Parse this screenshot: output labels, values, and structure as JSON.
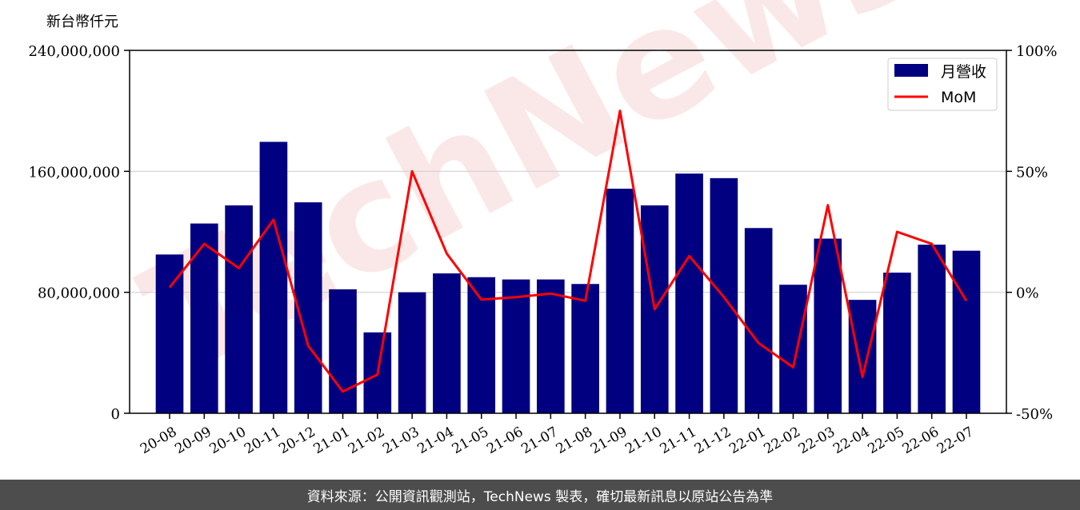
{
  "chart_data": {
    "type": "bar",
    "y_unit_label": "新台幣仟元",
    "categories": [
      "20-08",
      "20-09",
      "20-10",
      "20-11",
      "20-12",
      "21-01",
      "21-02",
      "21-03",
      "21-04",
      "21-05",
      "21-06",
      "21-07",
      "21-08",
      "21-09",
      "21-10",
      "21-11",
      "21-12",
      "22-01",
      "22-02",
      "22-03",
      "22-04",
      "22-05",
      "22-06",
      "22-07"
    ],
    "series": [
      {
        "name": "月營收",
        "type": "bar",
        "axis": "left",
        "color": "#000080",
        "values": [
          105000000,
          125500000,
          137500000,
          179500000,
          139500000,
          82000000,
          53500000,
          80000000,
          92500000,
          90000000,
          88500000,
          88500000,
          85500000,
          148500000,
          137500000,
          158500000,
          155500000,
          122500000,
          85000000,
          115500000,
          75000000,
          93000000,
          111500000,
          107500000
        ]
      },
      {
        "name": "MoM",
        "type": "line",
        "axis": "right",
        "color": "#ff0000",
        "values": [
          2,
          20,
          10,
          30,
          -22,
          -41,
          -34,
          50,
          16,
          -3,
          -2,
          -0.5,
          -3.5,
          75,
          -7,
          15,
          -2,
          -21,
          -31,
          36,
          -35,
          25,
          20,
          -3.5
        ]
      }
    ],
    "y_left": {
      "range": [
        0,
        240000000
      ],
      "ticks": [
        0,
        80000000,
        160000000,
        240000000
      ],
      "tick_labels": [
        "0",
        "80,000,000",
        "160,000,000",
        "240,000,000"
      ]
    },
    "y_right": {
      "range": [
        -50,
        100
      ],
      "ticks": [
        -50,
        0,
        50,
        100
      ],
      "tick_labels": [
        "-50%",
        "0%",
        "50%",
        "100%"
      ]
    },
    "grid": "horizontal",
    "legend_position": "top-right",
    "watermark": "TechNews"
  },
  "footer_text": "資料來源：公開資訊觀測站，TechNews 製表，確切最新訊息以原站公告為準"
}
